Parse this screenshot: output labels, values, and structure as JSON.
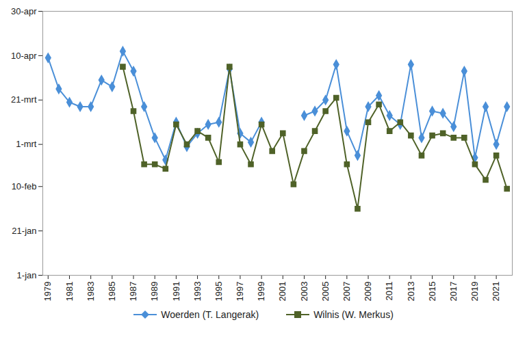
{
  "chart_data": {
    "type": "line",
    "x": [
      1979,
      1980,
      1981,
      1982,
      1983,
      1984,
      1985,
      1986,
      1987,
      1988,
      1989,
      1990,
      1991,
      1992,
      1993,
      1994,
      1995,
      1996,
      1997,
      1998,
      1999,
      2000,
      2001,
      2002,
      2003,
      2004,
      2005,
      2006,
      2007,
      2008,
      2009,
      2010,
      2011,
      2012,
      2013,
      2014,
      2015,
      2016,
      2017,
      2018,
      2019,
      2020,
      2021,
      2022
    ],
    "xlim": [
      1978.5,
      2022.5
    ],
    "xticks": [
      1979,
      1981,
      1983,
      1985,
      1987,
      1989,
      1991,
      1993,
      1995,
      1997,
      1999,
      2001,
      2003,
      2005,
      2007,
      2009,
      2011,
      2013,
      2015,
      2017,
      2019,
      2021
    ],
    "ylim": [
      1,
      120
    ],
    "yticks": [
      {
        "value": 1,
        "label": "1-jan"
      },
      {
        "value": 21,
        "label": "21-jan"
      },
      {
        "value": 41,
        "label": "10-feb"
      },
      {
        "value": 60,
        "label": "1-mrt"
      },
      {
        "value": 80,
        "label": "21-mrt"
      },
      {
        "value": 100,
        "label": "10-apr"
      },
      {
        "value": 120,
        "label": "30-apr"
      }
    ],
    "grid": false,
    "legend": "bottom",
    "series": [
      {
        "name": "Woerden (T. Langerak)",
        "color": "#4a8fd8",
        "marker": "diamond",
        "line_style": "solid",
        "values": [
          99,
          85,
          79,
          77,
          77,
          89,
          86,
          102,
          93,
          77,
          63,
          53,
          70,
          59,
          65,
          69,
          70,
          94,
          65,
          61,
          70,
          null,
          null,
          null,
          73,
          75,
          80,
          96,
          66,
          55,
          77,
          82,
          73,
          69,
          96,
          63,
          75,
          74,
          68,
          93,
          54,
          77,
          60,
          77
        ]
      },
      {
        "name": "Wilnis (W. Merkus)",
        "color": "#4f6228",
        "marker": "square",
        "line_style": "solid",
        "values": [
          null,
          null,
          null,
          null,
          null,
          null,
          null,
          95,
          75,
          51,
          51,
          49,
          69,
          60,
          66,
          63,
          52,
          95,
          60,
          51,
          69,
          57,
          65,
          42,
          57,
          66,
          75,
          81,
          51,
          31,
          70,
          78,
          66,
          70,
          64,
          55,
          64,
          65,
          63,
          63,
          51,
          44,
          55,
          40
        ]
      }
    ]
  }
}
